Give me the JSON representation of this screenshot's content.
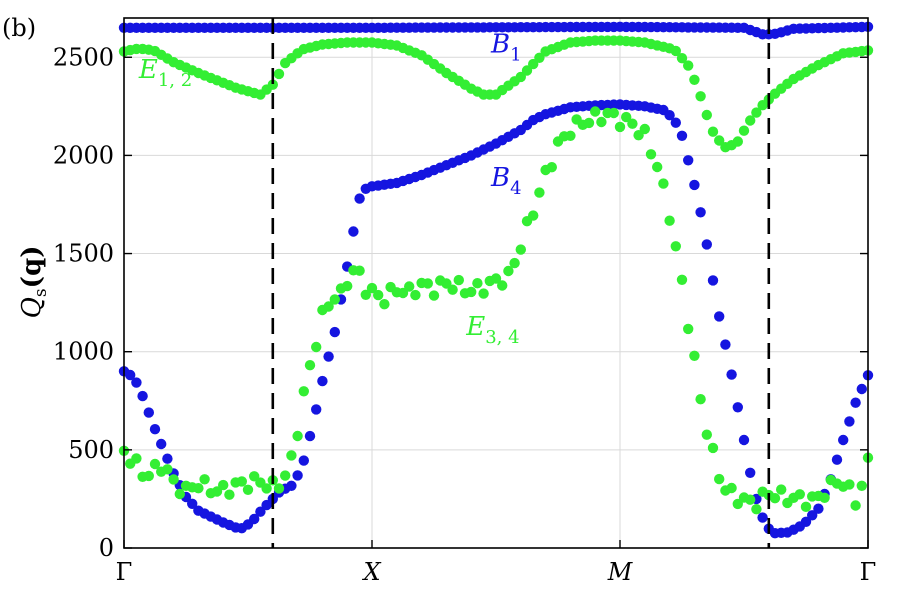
{
  "panel_label": "(b)",
  "colors": {
    "blue": "#1515e0",
    "green": "#33ee33",
    "axis": "#000000",
    "grid": "#d9d9d9"
  },
  "chart_data": {
    "type": "scatter",
    "title": "",
    "ylabel": "Q_s(q)",
    "ylabel_main": "Q",
    "ylabel_sub": "s",
    "ylabel_arg": "(q)",
    "ylim": [
      0,
      2700
    ],
    "yticks": [
      0,
      500,
      1000,
      1500,
      2000,
      2500
    ],
    "xlim": [
      0,
      3
    ],
    "xticks": [
      {
        "x": 0,
        "label": "Γ"
      },
      {
        "x": 1,
        "label": "X"
      },
      {
        "x": 2,
        "label": "M"
      },
      {
        "x": 3,
        "label": "Γ"
      }
    ],
    "vlines": [
      0.6,
      2.6
    ],
    "grid": true,
    "annotations": [
      {
        "main": "B",
        "sub": "1",
        "x": 1.48,
        "y": 2525,
        "color": "blue"
      },
      {
        "main": "B",
        "sub": "4",
        "x": 1.48,
        "y": 1845,
        "color": "blue"
      },
      {
        "main": "E",
        "sub": "1, 2",
        "x": 0.06,
        "y": 2395,
        "color": "green"
      },
      {
        "main": "E",
        "sub": "3, 4",
        "x": 1.38,
        "y": 1085,
        "color": "green"
      }
    ],
    "series": [
      {
        "color": "blue",
        "anchors": [
          [
            0,
            2650
          ],
          [
            1.0,
            2650
          ],
          [
            2.0,
            2655
          ],
          [
            2.5,
            2650
          ],
          [
            2.58,
            2615
          ],
          [
            2.63,
            2620
          ],
          [
            2.7,
            2645
          ],
          [
            3.0,
            2655
          ]
        ],
        "noise": 0
      },
      {
        "color": "green",
        "anchors": [
          [
            0,
            2530
          ],
          [
            0.06,
            2545
          ],
          [
            0.12,
            2535
          ],
          [
            0.2,
            2475
          ],
          [
            0.3,
            2420
          ],
          [
            0.38,
            2380
          ],
          [
            0.45,
            2345
          ],
          [
            0.52,
            2320
          ],
          [
            0.55,
            2310
          ],
          [
            0.6,
            2360
          ],
          [
            0.65,
            2470
          ],
          [
            0.72,
            2540
          ],
          [
            0.8,
            2565
          ],
          [
            0.9,
            2575
          ],
          [
            1.0,
            2575
          ],
          [
            1.1,
            2560
          ],
          [
            1.2,
            2510
          ],
          [
            1.3,
            2420
          ],
          [
            1.4,
            2340
          ],
          [
            1.45,
            2310
          ],
          [
            1.5,
            2310
          ],
          [
            1.6,
            2400
          ],
          [
            1.7,
            2530
          ],
          [
            1.8,
            2575
          ],
          [
            1.9,
            2585
          ],
          [
            2.0,
            2585
          ],
          [
            2.1,
            2575
          ],
          [
            2.22,
            2540
          ],
          [
            2.28,
            2450
          ],
          [
            2.32,
            2320
          ],
          [
            2.37,
            2130
          ],
          [
            2.42,
            2040
          ],
          [
            2.47,
            2060
          ],
          [
            2.52,
            2170
          ],
          [
            2.57,
            2250
          ],
          [
            2.63,
            2320
          ],
          [
            2.7,
            2390
          ],
          [
            2.8,
            2460
          ],
          [
            2.9,
            2520
          ],
          [
            3.0,
            2535
          ]
        ],
        "noise": 0
      },
      {
        "color": "blue",
        "anchors": [
          [
            0,
            900
          ],
          [
            0.04,
            870
          ],
          [
            0.08,
            760
          ],
          [
            0.12,
            620
          ],
          [
            0.16,
            500
          ],
          [
            0.2,
            380
          ],
          [
            0.25,
            260
          ],
          [
            0.3,
            190
          ],
          [
            0.35,
            160
          ],
          [
            0.4,
            130
          ],
          [
            0.45,
            105
          ],
          [
            0.48,
            100
          ],
          [
            0.52,
            140
          ],
          [
            0.56,
            200
          ],
          [
            0.6,
            250
          ],
          [
            0.63,
            290
          ],
          [
            0.68,
            320
          ],
          [
            0.72,
            420
          ],
          [
            0.76,
            620
          ],
          [
            0.8,
            850
          ],
          [
            0.85,
            1100
          ],
          [
            0.88,
            1300
          ],
          [
            0.91,
            1500
          ],
          [
            0.93,
            1650
          ],
          [
            0.95,
            1780
          ],
          [
            0.98,
            1840
          ],
          [
            1.02,
            1845
          ],
          [
            1.1,
            1860
          ],
          [
            1.2,
            1900
          ],
          [
            1.3,
            1950
          ],
          [
            1.4,
            2000
          ],
          [
            1.5,
            2060
          ],
          [
            1.6,
            2130
          ],
          [
            1.65,
            2180
          ],
          [
            1.7,
            2210
          ],
          [
            1.8,
            2245
          ],
          [
            1.9,
            2255
          ],
          [
            2.0,
            2260
          ],
          [
            2.1,
            2250
          ],
          [
            2.18,
            2230
          ],
          [
            2.22,
            2180
          ],
          [
            2.25,
            2100
          ],
          [
            2.28,
            1950
          ],
          [
            2.31,
            1800
          ],
          [
            2.34,
            1620
          ],
          [
            2.37,
            1400
          ],
          [
            2.4,
            1180
          ],
          [
            2.44,
            950
          ],
          [
            2.47,
            750
          ],
          [
            2.5,
            550
          ],
          [
            2.53,
            350
          ],
          [
            2.56,
            200
          ],
          [
            2.59,
            110
          ],
          [
            2.62,
            75
          ],
          [
            2.68,
            80
          ],
          [
            2.74,
            120
          ],
          [
            2.8,
            200
          ],
          [
            2.85,
            350
          ],
          [
            2.9,
            550
          ],
          [
            2.95,
            740
          ],
          [
            3.0,
            880
          ]
        ],
        "noise": 0
      },
      {
        "color": "green",
        "anchors": [
          [
            0,
            490
          ],
          [
            0.04,
            440
          ],
          [
            0.08,
            370
          ],
          [
            0.12,
            390
          ],
          [
            0.16,
            430
          ],
          [
            0.2,
            330
          ],
          [
            0.25,
            290
          ],
          [
            0.3,
            330
          ],
          [
            0.35,
            300
          ],
          [
            0.4,
            290
          ],
          [
            0.45,
            320
          ],
          [
            0.5,
            330
          ],
          [
            0.55,
            340
          ],
          [
            0.6,
            310
          ],
          [
            0.64,
            340
          ],
          [
            0.68,
            460
          ],
          [
            0.72,
            750
          ],
          [
            0.76,
            980
          ],
          [
            0.8,
            1180
          ],
          [
            0.84,
            1280
          ],
          [
            0.88,
            1290
          ],
          [
            0.91,
            1400
          ],
          [
            0.94,
            1420
          ],
          [
            0.97,
            1330
          ],
          [
            1.0,
            1300
          ],
          [
            1.05,
            1270
          ],
          [
            1.1,
            1320
          ],
          [
            1.15,
            1300
          ],
          [
            1.2,
            1340
          ],
          [
            1.25,
            1320
          ],
          [
            1.3,
            1350
          ],
          [
            1.35,
            1330
          ],
          [
            1.4,
            1310
          ],
          [
            1.45,
            1330
          ],
          [
            1.5,
            1360
          ],
          [
            1.55,
            1380
          ],
          [
            1.6,
            1540
          ],
          [
            1.65,
            1720
          ],
          [
            1.7,
            1900
          ],
          [
            1.75,
            2050
          ],
          [
            1.8,
            2130
          ],
          [
            1.85,
            2170
          ],
          [
            1.9,
            2190
          ],
          [
            1.95,
            2210
          ],
          [
            2.0,
            2180
          ],
          [
            2.05,
            2160
          ],
          [
            2.1,
            2100
          ],
          [
            2.15,
            1950
          ],
          [
            2.2,
            1700
          ],
          [
            2.25,
            1350
          ],
          [
            2.3,
            950
          ],
          [
            2.34,
            650
          ],
          [
            2.38,
            450
          ],
          [
            2.42,
            300
          ],
          [
            2.46,
            270
          ],
          [
            2.5,
            240
          ],
          [
            2.55,
            230
          ],
          [
            2.6,
            280
          ],
          [
            2.66,
            260
          ],
          [
            2.72,
            250
          ],
          [
            2.78,
            240
          ],
          [
            2.84,
            300
          ],
          [
            2.88,
            350
          ],
          [
            2.92,
            300
          ],
          [
            2.96,
            230
          ],
          [
            3.0,
            440
          ]
        ],
        "noise": 35
      }
    ]
  }
}
